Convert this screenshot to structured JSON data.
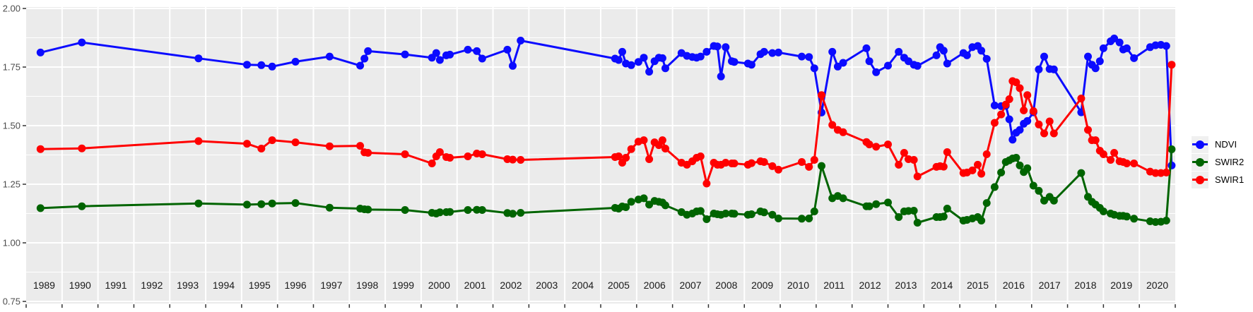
{
  "chart_data": {
    "type": "line",
    "title": "",
    "xlabel": "",
    "ylabel": "",
    "grid": "on",
    "colors": {
      "panel_bg": "#ebebeb",
      "grid": "#ffffff",
      "axis_text_y": "#4d4d4d",
      "axis_text_x": "#1a1a1a",
      "tick": "#333333",
      "legend_key_bg": "#f0f0f0"
    },
    "x_axis": {
      "range": [
        1989,
        2021
      ],
      "tick_labels": [
        "1989",
        "1990",
        "1991",
        "1992",
        "1993",
        "1994",
        "1995",
        "1996",
        "1997",
        "1998",
        "1999",
        "2000",
        "2001",
        "2002",
        "2003",
        "2004",
        "2005",
        "2006",
        "2007",
        "2008",
        "2009",
        "2010",
        "2011",
        "2012",
        "2013",
        "2014",
        "2015",
        "2016",
        "2017",
        "2018",
        "2019",
        "2020"
      ]
    },
    "y_axis": {
      "range": [
        0.741,
        2.006
      ],
      "ticks": [
        {
          "label": "2.00",
          "value": 2.0
        },
        {
          "label": "1.75",
          "value": 1.75
        },
        {
          "label": "1.50",
          "value": 1.5
        },
        {
          "label": "1.25",
          "value": 1.25
        },
        {
          "label": "1.00",
          "value": 1.0
        },
        {
          "label": "0.75",
          "value": 0.75
        }
      ],
      "minor_gridlines": [
        1.875,
        1.625,
        1.375,
        1.125,
        0.875
      ]
    },
    "x": [
      1989.4,
      1990.55,
      1993.8,
      1995.15,
      1995.55,
      1995.85,
      1996.5,
      1997.45,
      1998.3,
      1998.42,
      1998.52,
      1999.55,
      2000.3,
      2000.42,
      2000.52,
      2000.7,
      2000.8,
      2001.3,
      2001.55,
      2001.7,
      2002.4,
      2002.55,
      2002.77,
      2005.4,
      2005.5,
      2005.6,
      2005.7,
      2005.85,
      2006.05,
      2006.2,
      2006.35,
      2006.5,
      2006.62,
      2006.72,
      2006.8,
      2007.25,
      2007.4,
      2007.55,
      2007.67,
      2007.78,
      2007.95,
      2008.15,
      2008.25,
      2008.35,
      2008.48,
      2008.65,
      2008.72,
      2009.1,
      2009.2,
      2009.45,
      2009.55,
      2009.78,
      2009.95,
      2010.6,
      2010.8,
      2010.95,
      2011.15,
      2011.45,
      2011.6,
      2011.75,
      2012.4,
      2012.48,
      2012.67,
      2013.0,
      2013.3,
      2013.45,
      2013.57,
      2013.72,
      2013.82,
      2014.35,
      2014.45,
      2014.55,
      2014.65,
      2015.1,
      2015.2,
      2015.35,
      2015.5,
      2015.6,
      2015.75,
      2015.97,
      2016.15,
      2016.28,
      2016.38,
      2016.47,
      2016.57,
      2016.67,
      2016.78,
      2016.88,
      2017.05,
      2017.2,
      2017.35,
      2017.5,
      2017.62,
      2018.38,
      2018.57,
      2018.68,
      2018.78,
      2018.9,
      2019.0,
      2019.2,
      2019.3,
      2019.45,
      2019.55,
      2019.65,
      2019.85,
      2020.3,
      2020.45,
      2020.6,
      2020.75,
      2020.9
    ],
    "series": [
      {
        "name": "NDVI",
        "color": "#0b0bff",
        "values": [
          1.812,
          1.855,
          1.787,
          1.76,
          1.758,
          1.752,
          1.773,
          1.795,
          1.756,
          1.786,
          1.818,
          1.804,
          1.79,
          1.81,
          1.78,
          1.8,
          1.803,
          1.824,
          1.818,
          1.786,
          1.824,
          1.755,
          1.863,
          1.786,
          1.78,
          1.815,
          1.765,
          1.758,
          1.772,
          1.79,
          1.73,
          1.775,
          1.79,
          1.788,
          1.745,
          1.81,
          1.798,
          1.793,
          1.79,
          1.795,
          1.815,
          1.84,
          1.838,
          1.71,
          1.835,
          1.775,
          1.772,
          1.765,
          1.76,
          1.805,
          1.815,
          1.81,
          1.812,
          1.795,
          1.793,
          1.745,
          1.556,
          1.815,
          1.752,
          1.768,
          1.83,
          1.775,
          1.728,
          1.756,
          1.815,
          1.79,
          1.775,
          1.76,
          1.755,
          1.8,
          1.835,
          1.82,
          1.765,
          1.81,
          1.8,
          1.835,
          1.84,
          1.82,
          1.785,
          1.586,
          1.583,
          1.585,
          1.527,
          1.44,
          1.47,
          1.482,
          1.508,
          1.52,
          1.557,
          1.74,
          1.795,
          1.742,
          1.74,
          1.557,
          1.795,
          1.76,
          1.745,
          1.775,
          1.83,
          1.86,
          1.872,
          1.855,
          1.825,
          1.83,
          1.788,
          1.835,
          1.843,
          1.845,
          1.84,
          1.33
        ]
      },
      {
        "name": "SWIR2",
        "color": "#006400",
        "values": [
          1.148,
          1.156,
          1.168,
          1.163,
          1.165,
          1.168,
          1.17,
          1.15,
          1.146,
          1.143,
          1.142,
          1.14,
          1.128,
          1.125,
          1.13,
          1.131,
          1.132,
          1.14,
          1.141,
          1.14,
          1.127,
          1.124,
          1.128,
          1.149,
          1.146,
          1.155,
          1.152,
          1.175,
          1.185,
          1.19,
          1.163,
          1.179,
          1.175,
          1.172,
          1.16,
          1.131,
          1.12,
          1.125,
          1.134,
          1.136,
          1.101,
          1.125,
          1.122,
          1.12,
          1.125,
          1.125,
          1.124,
          1.12,
          1.122,
          1.134,
          1.13,
          1.12,
          1.104,
          1.103,
          1.104,
          1.134,
          1.328,
          1.19,
          1.2,
          1.19,
          1.156,
          1.156,
          1.165,
          1.172,
          1.11,
          1.134,
          1.136,
          1.137,
          1.086,
          1.11,
          1.11,
          1.112,
          1.146,
          1.095,
          1.098,
          1.104,
          1.11,
          1.095,
          1.17,
          1.238,
          1.3,
          1.345,
          1.352,
          1.36,
          1.363,
          1.33,
          1.302,
          1.318,
          1.244,
          1.222,
          1.18,
          1.196,
          1.18,
          1.298,
          1.196,
          1.175,
          1.163,
          1.149,
          1.134,
          1.125,
          1.12,
          1.115,
          1.115,
          1.112,
          1.103,
          1.092,
          1.089,
          1.09,
          1.095,
          1.399
        ]
      },
      {
        "name": "SWIR1",
        "color": "#ff0000",
        "values": [
          1.4,
          1.403,
          1.434,
          1.423,
          1.402,
          1.438,
          1.429,
          1.412,
          1.414,
          1.386,
          1.384,
          1.378,
          1.339,
          1.369,
          1.387,
          1.366,
          1.363,
          1.369,
          1.381,
          1.378,
          1.357,
          1.355,
          1.354,
          1.366,
          1.369,
          1.342,
          1.363,
          1.4,
          1.432,
          1.438,
          1.357,
          1.429,
          1.417,
          1.438,
          1.402,
          1.342,
          1.333,
          1.348,
          1.363,
          1.369,
          1.253,
          1.342,
          1.333,
          1.333,
          1.342,
          1.339,
          1.339,
          1.333,
          1.34,
          1.348,
          1.345,
          1.327,
          1.312,
          1.345,
          1.324,
          1.354,
          1.63,
          1.503,
          1.482,
          1.472,
          1.43,
          1.42,
          1.41,
          1.42,
          1.333,
          1.384,
          1.357,
          1.354,
          1.283,
          1.324,
          1.327,
          1.325,
          1.387,
          1.298,
          1.3,
          1.309,
          1.333,
          1.295,
          1.378,
          1.512,
          1.548,
          1.59,
          1.613,
          1.69,
          1.685,
          1.66,
          1.565,
          1.63,
          1.562,
          1.505,
          1.467,
          1.518,
          1.467,
          1.616,
          1.482,
          1.438,
          1.438,
          1.393,
          1.378,
          1.354,
          1.384,
          1.348,
          1.345,
          1.339,
          1.339,
          1.304,
          1.298,
          1.298,
          1.3,
          1.76
        ]
      }
    ],
    "legend": {
      "position": "right",
      "entries": [
        {
          "label": "NDVI",
          "color": "#0b0bff"
        },
        {
          "label": "SWIR2",
          "color": "#006400"
        },
        {
          "label": "SWIR1",
          "color": "#ff0000"
        }
      ]
    }
  }
}
